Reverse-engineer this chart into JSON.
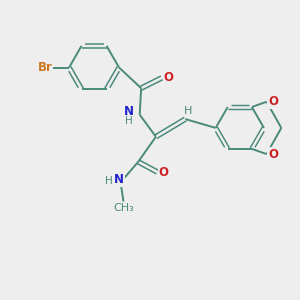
{
  "bg_color": "#eeeeee",
  "bond_color": "#4a8a7a",
  "N_color": "#2222cc",
  "O_color": "#cc2222",
  "Br_color": "#cc7722",
  "H_color": "#4a8a7a",
  "figsize": [
    3.0,
    3.0
  ],
  "dpi": 100,
  "xlim": [
    0,
    10
  ],
  "ylim": [
    0,
    10
  ]
}
